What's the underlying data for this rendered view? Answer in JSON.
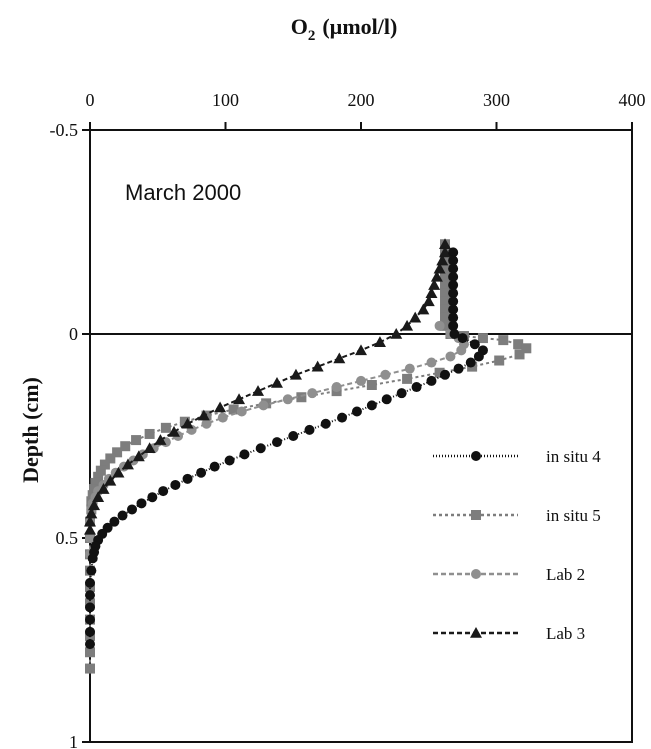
{
  "chart_data": {
    "type": "scatter",
    "title": "March 2000",
    "xlabel_main": "O",
    "xlabel_sub": "2",
    "xlabel_units": "(µmol/l)",
    "ylabel": "Depth (cm)",
    "xlim": [
      0,
      400
    ],
    "ylim": [
      -0.5,
      1
    ],
    "y_inverted": true,
    "x_axis_position": "top",
    "xticks": [
      0,
      100,
      200,
      300,
      400
    ],
    "xtick_labels": [
      "0",
      "100",
      "200",
      "300",
      "400"
    ],
    "yticks": [
      -0.5,
      0,
      0.5,
      1
    ],
    "ytick_labels": [
      "-0.5",
      "0",
      "0.5",
      "1"
    ],
    "legend_position": "right",
    "reference_line_y": 0,
    "series": [
      {
        "name": "in situ 4",
        "marker": "circle",
        "color": "#111111",
        "dash": "1,2",
        "points": [
          [
            268,
            -0.2
          ],
          [
            268,
            -0.18
          ],
          [
            268,
            -0.16
          ],
          [
            268,
            -0.14
          ],
          [
            268,
            -0.12
          ],
          [
            268,
            -0.1
          ],
          [
            268,
            -0.08
          ],
          [
            268,
            -0.06
          ],
          [
            268,
            -0.04
          ],
          [
            268,
            -0.02
          ],
          [
            269,
            0
          ],
          [
            275,
            0.01
          ],
          [
            284,
            0.025
          ],
          [
            290,
            0.04
          ],
          [
            287,
            0.055
          ],
          [
            281,
            0.07
          ],
          [
            272,
            0.085
          ],
          [
            262,
            0.1
          ],
          [
            252,
            0.115
          ],
          [
            241,
            0.13
          ],
          [
            230,
            0.145
          ],
          [
            219,
            0.16
          ],
          [
            208,
            0.175
          ],
          [
            197,
            0.19
          ],
          [
            186,
            0.205
          ],
          [
            174,
            0.22
          ],
          [
            162,
            0.235
          ],
          [
            150,
            0.25
          ],
          [
            138,
            0.265
          ],
          [
            126,
            0.28
          ],
          [
            114,
            0.295
          ],
          [
            103,
            0.31
          ],
          [
            92,
            0.325
          ],
          [
            82,
            0.34
          ],
          [
            72,
            0.355
          ],
          [
            63,
            0.37
          ],
          [
            54,
            0.385
          ],
          [
            46,
            0.4
          ],
          [
            38,
            0.415
          ],
          [
            31,
            0.43
          ],
          [
            24,
            0.445
          ],
          [
            18,
            0.46
          ],
          [
            13,
            0.475
          ],
          [
            9,
            0.49
          ],
          [
            6,
            0.505
          ],
          [
            4,
            0.52
          ],
          [
            3,
            0.535
          ],
          [
            2,
            0.55
          ],
          [
            1,
            0.58
          ],
          [
            0,
            0.61
          ],
          [
            0,
            0.64
          ],
          [
            0,
            0.67
          ],
          [
            0,
            0.7
          ],
          [
            0,
            0.73
          ],
          [
            0,
            0.76
          ]
        ]
      },
      {
        "name": "in situ 5",
        "marker": "square",
        "color": "#7d7d7d",
        "dash": "3,3",
        "points": [
          [
            262,
            -0.22
          ],
          [
            262,
            -0.2
          ],
          [
            262,
            -0.18
          ],
          [
            262,
            -0.16
          ],
          [
            262,
            -0.14
          ],
          [
            262,
            -0.12
          ],
          [
            262,
            -0.1
          ],
          [
            262,
            -0.08
          ],
          [
            262,
            -0.06
          ],
          [
            262,
            -0.04
          ],
          [
            262,
            -0.02
          ],
          [
            266,
            0
          ],
          [
            276,
            0.005
          ],
          [
            290,
            0.01
          ],
          [
            305,
            0.015
          ],
          [
            316,
            0.025
          ],
          [
            322,
            0.035
          ],
          [
            317,
            0.05
          ],
          [
            302,
            0.065
          ],
          [
            282,
            0.08
          ],
          [
            258,
            0.095
          ],
          [
            234,
            0.11
          ],
          [
            208,
            0.125
          ],
          [
            182,
            0.14
          ],
          [
            156,
            0.155
          ],
          [
            130,
            0.17
          ],
          [
            106,
            0.185
          ],
          [
            86,
            0.2
          ],
          [
            70,
            0.215
          ],
          [
            56,
            0.23
          ],
          [
            44,
            0.245
          ],
          [
            34,
            0.26
          ],
          [
            26,
            0.275
          ],
          [
            20,
            0.29
          ],
          [
            15,
            0.305
          ],
          [
            11,
            0.32
          ],
          [
            8,
            0.335
          ],
          [
            6,
            0.35
          ],
          [
            4,
            0.365
          ],
          [
            3,
            0.38
          ],
          [
            2,
            0.395
          ],
          [
            1,
            0.41
          ],
          [
            1,
            0.43
          ],
          [
            0,
            0.46
          ],
          [
            0,
            0.5
          ],
          [
            0,
            0.54
          ],
          [
            0,
            0.58
          ],
          [
            0,
            0.62
          ],
          [
            0,
            0.66
          ],
          [
            0,
            0.7
          ],
          [
            0,
            0.74
          ],
          [
            0,
            0.78
          ],
          [
            0,
            0.82
          ]
        ]
      },
      {
        "name": "Lab 2",
        "marker": "circle",
        "color": "#8f8f8f",
        "dash": "5,3",
        "points": [
          [
            258,
            -0.02
          ],
          [
            266,
            0
          ],
          [
            272,
            0.01
          ],
          [
            276,
            0.025
          ],
          [
            274,
            0.04
          ],
          [
            266,
            0.055
          ],
          [
            252,
            0.07
          ],
          [
            236,
            0.085
          ],
          [
            218,
            0.1
          ],
          [
            200,
            0.115
          ],
          [
            182,
            0.13
          ],
          [
            164,
            0.145
          ],
          [
            146,
            0.16
          ],
          [
            128,
            0.175
          ],
          [
            112,
            0.19
          ],
          [
            98,
            0.205
          ],
          [
            86,
            0.22
          ],
          [
            75,
            0.235
          ],
          [
            65,
            0.25
          ],
          [
            56,
            0.265
          ],
          [
            47,
            0.28
          ],
          [
            39,
            0.295
          ],
          [
            32,
            0.31
          ],
          [
            25,
            0.325
          ],
          [
            19,
            0.34
          ],
          [
            14,
            0.355
          ],
          [
            10,
            0.37
          ],
          [
            6,
            0.385
          ],
          [
            4,
            0.4
          ],
          [
            2,
            0.415
          ],
          [
            1,
            0.43
          ],
          [
            0,
            0.46
          ],
          [
            0,
            0.5
          ],
          [
            0,
            0.54
          ]
        ]
      },
      {
        "name": "Lab 3",
        "marker": "triangle",
        "color": "#1a1a1a",
        "dash": "5,3",
        "points": [
          [
            262,
            -0.22
          ],
          [
            262,
            -0.2
          ],
          [
            260,
            -0.18
          ],
          [
            258,
            -0.16
          ],
          [
            256,
            -0.14
          ],
          [
            254,
            -0.12
          ],
          [
            252,
            -0.1
          ],
          [
            250,
            -0.08
          ],
          [
            246,
            -0.06
          ],
          [
            240,
            -0.04
          ],
          [
            234,
            -0.02
          ],
          [
            226,
            0
          ],
          [
            214,
            0.02
          ],
          [
            200,
            0.04
          ],
          [
            184,
            0.06
          ],
          [
            168,
            0.08
          ],
          [
            152,
            0.1
          ],
          [
            138,
            0.12
          ],
          [
            124,
            0.14
          ],
          [
            110,
            0.16
          ],
          [
            96,
            0.18
          ],
          [
            84,
            0.2
          ],
          [
            72,
            0.22
          ],
          [
            62,
            0.24
          ],
          [
            52,
            0.26
          ],
          [
            44,
            0.28
          ],
          [
            36,
            0.3
          ],
          [
            28,
            0.32
          ],
          [
            21,
            0.34
          ],
          [
            15,
            0.36
          ],
          [
            10,
            0.38
          ],
          [
            6,
            0.4
          ],
          [
            3,
            0.42
          ],
          [
            1,
            0.44
          ],
          [
            0,
            0.46
          ],
          [
            0,
            0.48
          ]
        ]
      }
    ]
  }
}
